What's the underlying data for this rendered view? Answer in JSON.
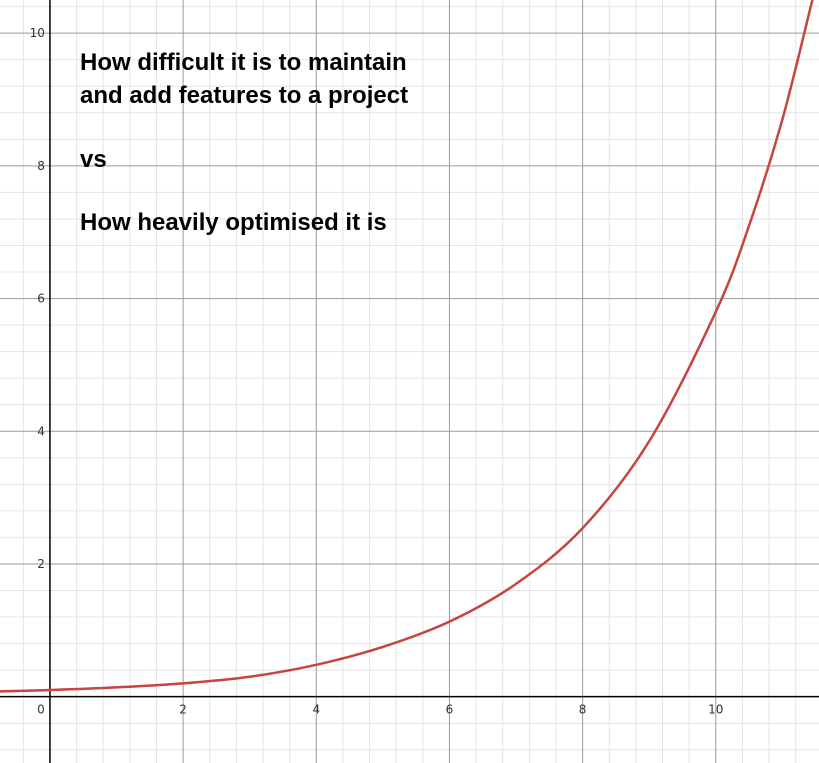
{
  "chart_data": {
    "type": "line",
    "title_lines": [
      "How difficult it is to maintain",
      "and add features to a project",
      "vs",
      "How heavily optimised it is"
    ],
    "xlabel": "",
    "ylabel": "",
    "xlim": [
      -0.75,
      11.55
    ],
    "ylim": [
      -1.0,
      10.5
    ],
    "grid": true,
    "x_ticks": [
      0,
      2,
      4,
      6,
      8,
      10
    ],
    "y_ticks": [
      2,
      4,
      6,
      8,
      10
    ],
    "x_tick_labels": [
      "0",
      "2",
      "4",
      "6",
      "8",
      "10"
    ],
    "y_tick_labels": [
      "2",
      "4",
      "6",
      "8",
      "10"
    ],
    "series": [
      {
        "color": "#c74440",
        "x": [
          -0.75,
          0,
          1,
          2,
          3,
          4,
          5,
          6,
          7,
          8,
          9,
          10,
          10.5,
          11,
          11.45
        ],
        "y": [
          0.08,
          0.1,
          0.14,
          0.2,
          0.3,
          0.48,
          0.75,
          1.13,
          1.7,
          2.54,
          3.85,
          5.8,
          7.1,
          8.7,
          10.5
        ]
      }
    ]
  }
}
